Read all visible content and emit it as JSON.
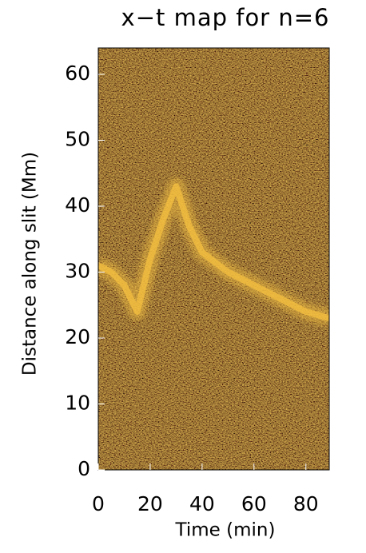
{
  "chart_data": {
    "type": "line",
    "title": "x−t map for n=6",
    "x_label": "Time (min)",
    "y_label": "Distance along slit (Mm)",
    "xlim": [
      0,
      89
    ],
    "ylim": [
      0,
      64
    ],
    "xticks": [
      0,
      20,
      40,
      60,
      80
    ],
    "yticks": [
      0,
      10,
      20,
      30,
      40,
      50,
      60
    ],
    "background_color": "#3a2a08",
    "series": [
      {
        "color": "#f5c040",
        "x": [
          0,
          5,
          10,
          15,
          20,
          25,
          30,
          35,
          40,
          50,
          60,
          70,
          80,
          89
        ],
        "values": [
          31,
          30,
          28,
          24,
          32,
          38,
          43,
          37,
          33,
          30,
          28,
          26,
          24,
          23
        ]
      }
    ]
  }
}
